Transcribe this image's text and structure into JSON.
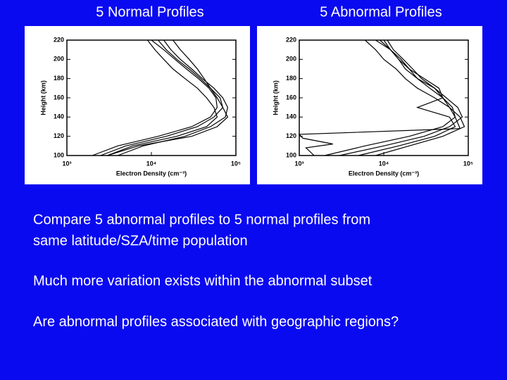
{
  "slide": {
    "titles": [
      "5 Normal Profiles",
      "5 Abnormal Profiles"
    ],
    "paragraphs": [
      [
        "Compare 5 abnormal profiles to 5 normal profiles from",
        "same latitude/SZA/time population"
      ],
      [
        "Much more variation exists within the abnormal subset"
      ],
      [
        "Are abnormal profiles associated with geographic regions?"
      ]
    ]
  },
  "chart_data": [
    {
      "type": "line",
      "xlabel": "Electron Density (cm⁻³)",
      "ylabel": "Height (km)",
      "xscale": "log",
      "xlim": [
        1000,
        100000
      ],
      "ylim": [
        100,
        220
      ],
      "xticks": [
        {
          "value": 1000,
          "label": "10³"
        },
        {
          "value": 10000,
          "label": "10⁴"
        },
        {
          "value": 100000,
          "label": "10⁵"
        }
      ],
      "yticks": [
        100,
        120,
        140,
        160,
        180,
        200,
        220
      ],
      "series": [
        {
          "color": "#000000",
          "values": [
            100,
            110,
            120,
            130,
            140,
            150,
            160,
            170,
            180,
            190,
            200,
            210,
            220
          ],
          "x": [
            3000,
            6000,
            20000,
            45000,
            60000,
            55000,
            45000,
            35000,
            25000,
            18000,
            14000,
            11000,
            9000
          ]
        },
        {
          "color": "#000000",
          "values": [
            100,
            110,
            120,
            130,
            140,
            150,
            160,
            170,
            180,
            190,
            200,
            210,
            220
          ],
          "x": [
            2500,
            5000,
            15000,
            35000,
            55000,
            70000,
            65000,
            50000,
            38000,
            28000,
            20000,
            15000,
            12000
          ]
        },
        {
          "color": "#000000",
          "values": [
            100,
            110,
            120,
            130,
            140,
            150,
            160,
            170,
            180,
            190,
            200,
            210,
            220
          ],
          "x": [
            4000,
            8000,
            25000,
            50000,
            75000,
            80000,
            70000,
            55000,
            40000,
            30000,
            22000,
            17000,
            14000
          ]
        },
        {
          "color": "#000000",
          "values": [
            100,
            110,
            120,
            130,
            140,
            150,
            160,
            170,
            180,
            190,
            200,
            210,
            220
          ],
          "x": [
            3000,
            7000,
            30000,
            60000,
            80000,
            70000,
            60000,
            50000,
            42000,
            35000,
            28000,
            22000,
            18000
          ]
        },
        {
          "color": "#000000",
          "values": [
            100,
            110,
            120,
            130,
            140,
            150,
            160,
            170,
            180,
            190,
            200,
            210,
            220
          ],
          "x": [
            2000,
            4000,
            12000,
            30000,
            50000,
            60000,
            58000,
            48000,
            36000,
            26000,
            19000,
            14000,
            10000
          ]
        }
      ]
    },
    {
      "type": "line",
      "xlabel": "Electron Density (cm⁻³)",
      "ylabel": "Height (km)",
      "xscale": "log",
      "xlim": [
        1000,
        100000
      ],
      "ylim": [
        100,
        220
      ],
      "xticks": [
        {
          "value": 1000,
          "label": "10³"
        },
        {
          "value": 10000,
          "label": "10⁴"
        },
        {
          "value": 100000,
          "label": "10⁵"
        }
      ],
      "yticks": [
        100,
        120,
        140,
        160,
        180,
        200,
        220
      ],
      "series": [
        {
          "color": "#000000",
          "values": [
            100,
            108,
            112,
            118,
            122,
            128,
            140,
            150,
            160,
            170,
            180,
            190,
            200,
            210,
            220
          ],
          "x": [
            1500,
            1200,
            2500,
            1100,
            1000,
            80000,
            70000,
            60000,
            50000,
            40000,
            25000,
            18000,
            15000,
            12000,
            10000
          ]
        },
        {
          "color": "#000000",
          "values": [
            100,
            110,
            120,
            130,
            140,
            150,
            160,
            170,
            180,
            190,
            200,
            210,
            220
          ],
          "x": [
            8000,
            20000,
            50000,
            90000,
            80000,
            60000,
            40000,
            25000,
            18000,
            14000,
            10000,
            8000,
            6000
          ]
        },
        {
          "color": "#000000",
          "values": [
            100,
            110,
            120,
            130,
            140,
            150,
            160,
            170,
            180,
            190,
            200,
            210,
            220
          ],
          "x": [
            5000,
            15000,
            40000,
            70000,
            60000,
            25000,
            50000,
            45000,
            30000,
            20000,
            15000,
            12000,
            9000
          ]
        },
        {
          "color": "#000000",
          "values": [
            100,
            110,
            120,
            130,
            140,
            150,
            160,
            170,
            180,
            190,
            200,
            210,
            220
          ],
          "x": [
            3000,
            10000,
            30000,
            60000,
            85000,
            75000,
            55000,
            40000,
            28000,
            22000,
            17000,
            13000,
            11000
          ]
        },
        {
          "color": "#000000",
          "values": [
            100,
            110,
            120,
            130,
            140,
            150,
            160,
            170,
            180,
            190,
            200,
            210,
            220
          ],
          "x": [
            2000,
            6000,
            20000,
            50000,
            70000,
            65000,
            50000,
            35000,
            25000,
            20000,
            16000,
            12000,
            8000
          ]
        }
      ]
    }
  ]
}
